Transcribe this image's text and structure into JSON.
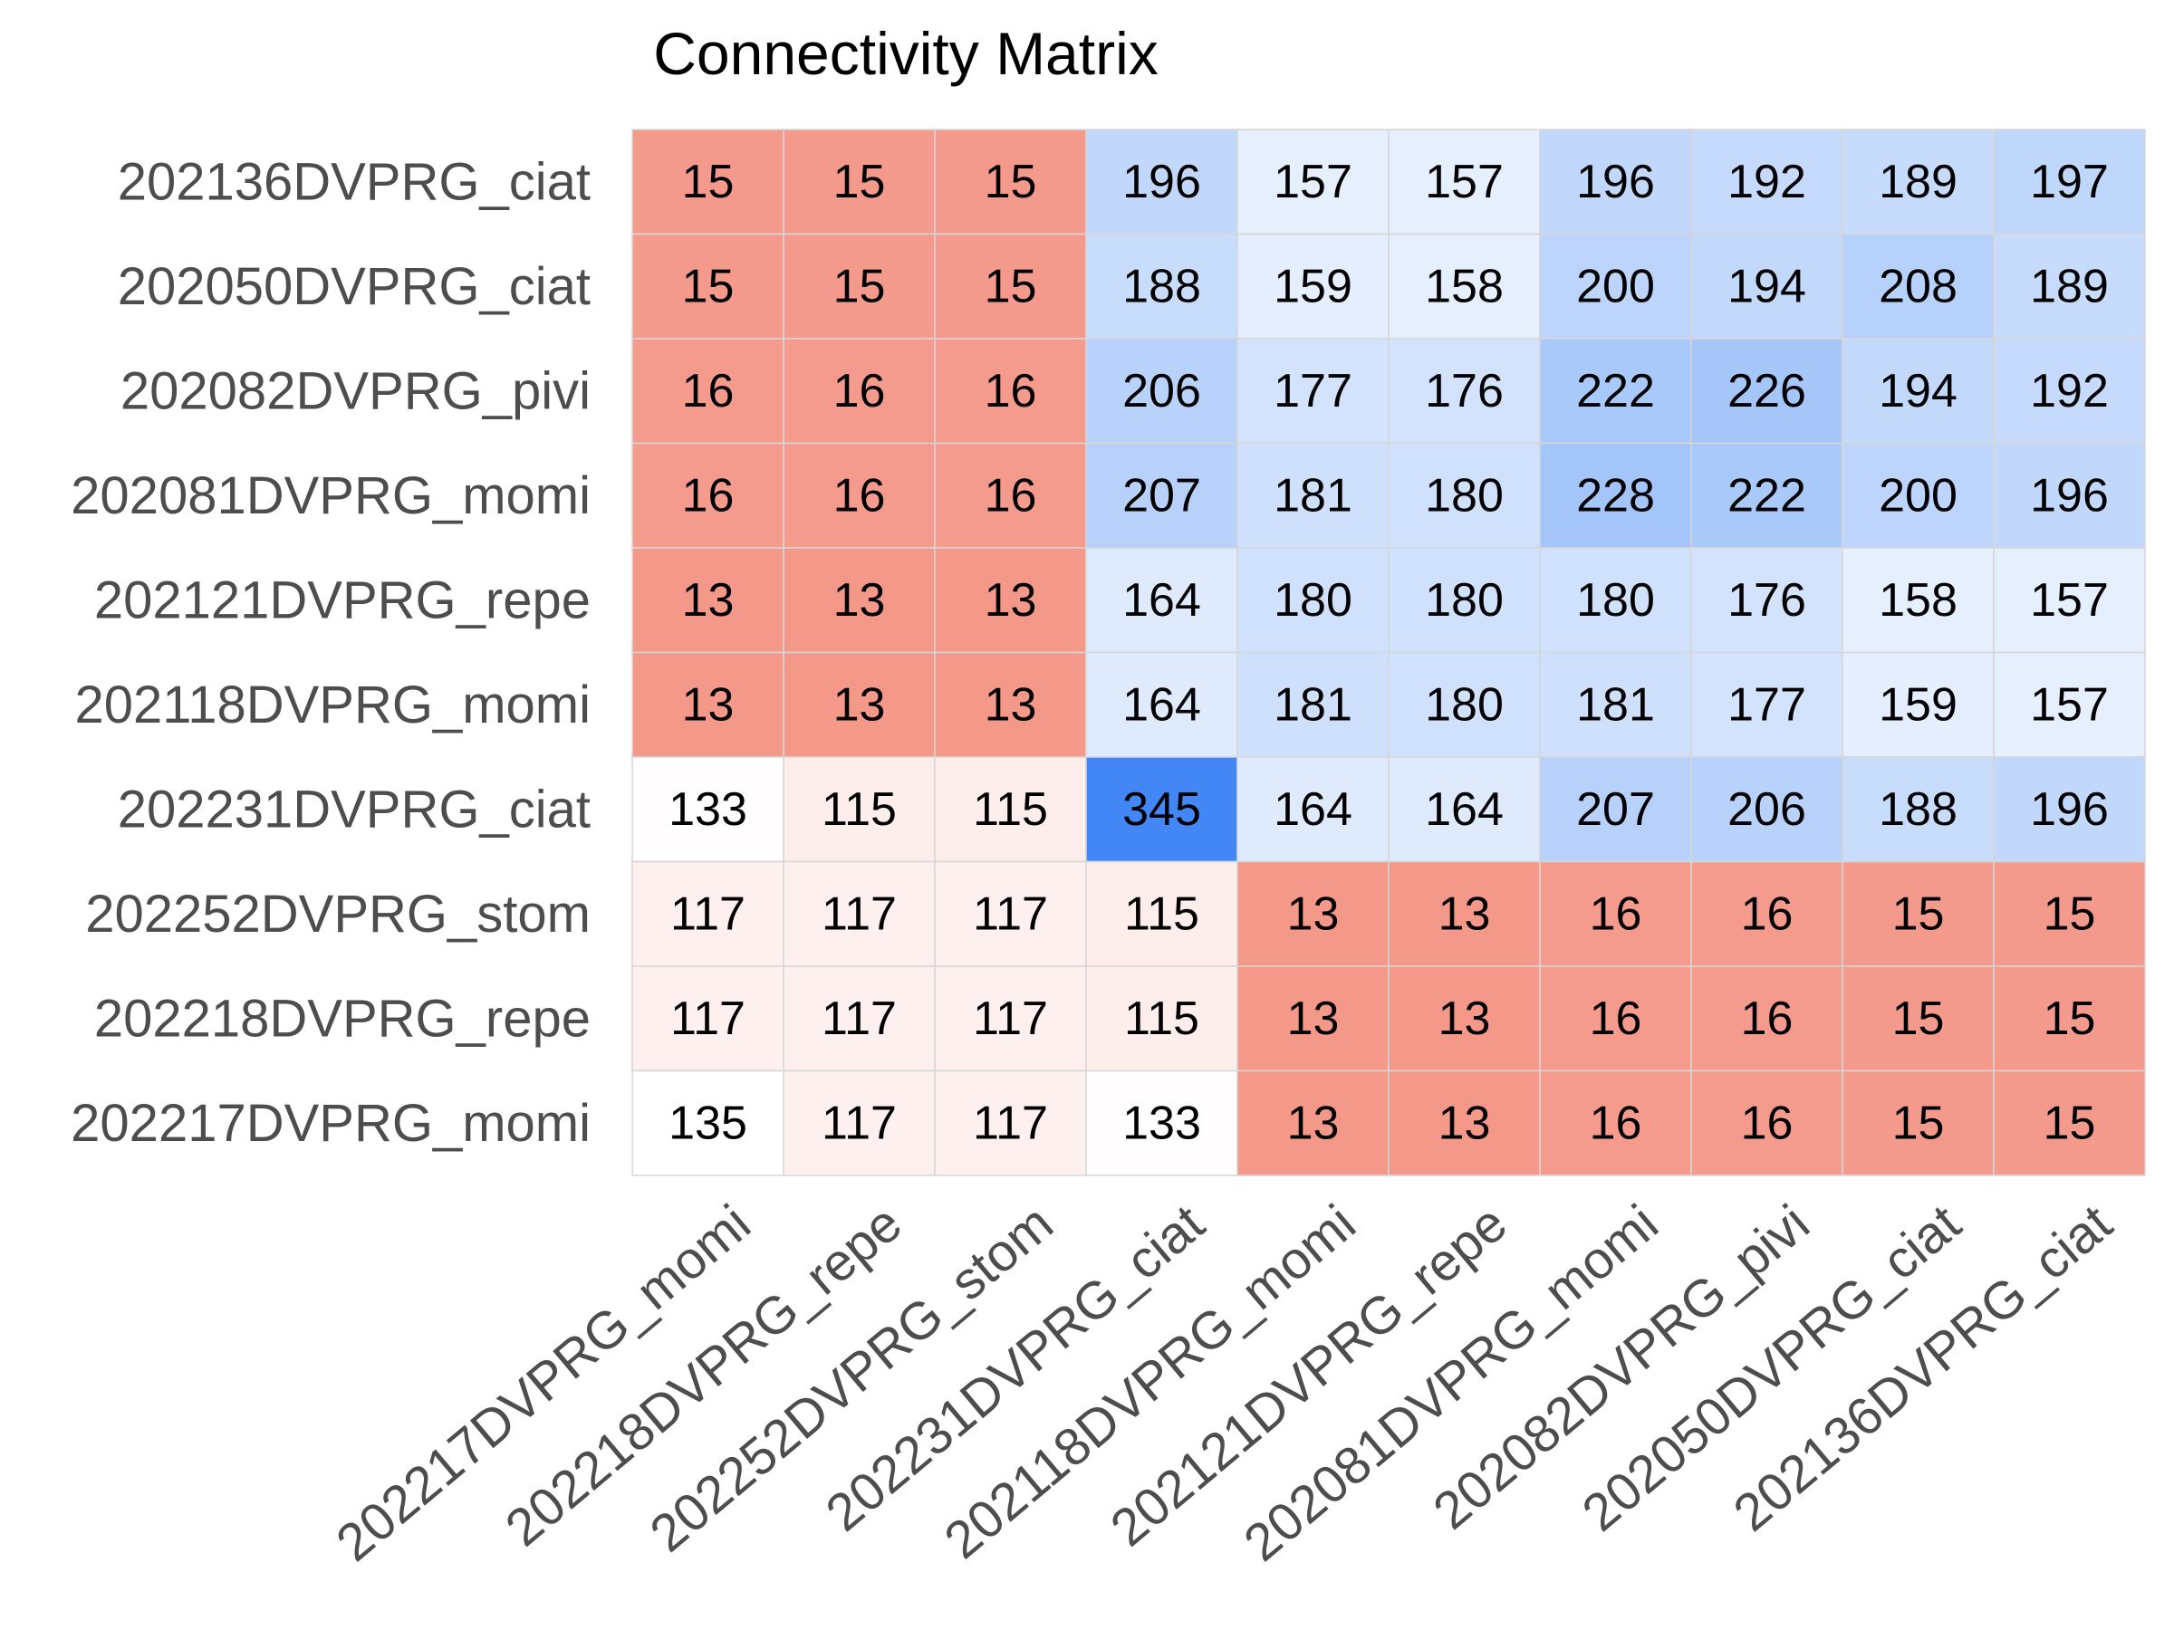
{
  "chart_data": {
    "type": "heatmap",
    "title": "Connectivity Matrix",
    "xlabel": "",
    "ylabel": "",
    "rows": [
      "202136DVPRG_ciat",
      "202050DVPRG_ciat",
      "202082DVPRG_pivi",
      "202081DVPRG_momi",
      "202121DVPRG_repe",
      "202118DVPRG_momi",
      "202231DVPRG_ciat",
      "202252DVPRG_stom",
      "202218DVPRG_repe",
      "202217DVPRG_momi"
    ],
    "columns": [
      "202217DVPRG_momi",
      "202218DVPRG_repe",
      "202252DVPRG_stom",
      "202231DVPRG_ciat",
      "202118DVPRG_momi",
      "202121DVPRG_repe",
      "202081DVPRG_momi",
      "202082DVPRG_pivi",
      "202050DVPRG_ciat",
      "202136DVPRG_ciat"
    ],
    "values": [
      [
        15,
        15,
        15,
        196,
        157,
        157,
        196,
        192,
        189,
        197
      ],
      [
        15,
        15,
        15,
        188,
        159,
        158,
        200,
        194,
        208,
        189
      ],
      [
        16,
        16,
        16,
        206,
        177,
        176,
        222,
        226,
        194,
        192
      ],
      [
        16,
        16,
        16,
        207,
        181,
        180,
        228,
        222,
        200,
        196
      ],
      [
        13,
        13,
        13,
        164,
        180,
        180,
        180,
        176,
        158,
        157
      ],
      [
        13,
        13,
        13,
        164,
        181,
        180,
        181,
        177,
        159,
        157
      ],
      [
        133,
        115,
        115,
        345,
        164,
        164,
        207,
        206,
        188,
        196
      ],
      [
        117,
        117,
        117,
        115,
        13,
        13,
        16,
        16,
        15,
        15
      ],
      [
        117,
        117,
        117,
        115,
        13,
        13,
        16,
        16,
        15,
        15
      ],
      [
        135,
        117,
        117,
        133,
        13,
        13,
        16,
        16,
        15,
        15
      ]
    ],
    "colormap": "coolwarm_r",
    "color_center": 135,
    "colors": {
      "low": "#f4988a",
      "center": "#ffffff",
      "high": "#4287f5"
    },
    "grid": true,
    "colorbar": false
  }
}
